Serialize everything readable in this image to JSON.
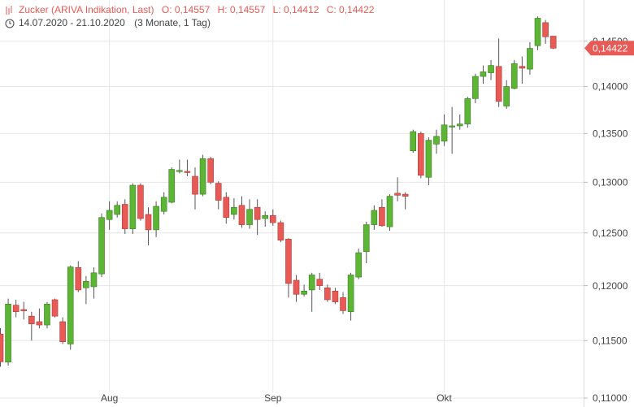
{
  "chart_data": {
    "type": "candlestick",
    "title": "Zucker (ARIVA Indikation, Last)",
    "ohlc": [
      "O: 0,14557",
      "H: 0,14557",
      "L: 0,14412",
      "C: 0,14422"
    ],
    "subtitle": "14.07.2020 - 21.10.2020",
    "period": "(3 Monate, 1 Tag)",
    "categories": [
      null,
      null,
      null,
      null,
      null,
      null,
      null,
      null,
      null,
      null,
      null,
      null,
      null,
      null,
      "Aug",
      null,
      null,
      null,
      null,
      null,
      null,
      null,
      null,
      null,
      null,
      null,
      null,
      null,
      null,
      null,
      null,
      null,
      null,
      null,
      null,
      "Sep",
      null,
      null,
      null,
      null,
      null,
      null,
      null,
      null,
      null,
      null,
      null,
      null,
      null,
      null,
      null,
      null,
      null,
      null,
      null,
      null,
      null,
      "Okt",
      null,
      null,
      null,
      null,
      null,
      null,
      null,
      null,
      null,
      null,
      null,
      null,
      null,
      null
    ],
    "open": [
      0.11559,
      0.1131,
      0.1182,
      0.1178,
      0.1172,
      0.1167,
      0.1164,
      0.1187,
      0.1167,
      0.1147,
      0.1217,
      0.1198,
      0.1199,
      0.1211,
      0.1263,
      0.1268,
      0.1278,
      0.1254,
      0.1297,
      0.1268,
      0.1253,
      0.1271,
      0.128,
      0.1311,
      0.1311,
      0.1306,
      0.1288,
      0.1324,
      0.1299,
      0.1285,
      0.1268,
      0.1277,
      0.1258,
      0.1275,
      0.1264,
      0.1267,
      0.126,
      0.1244,
      0.1205,
      0.1192,
      0.1196,
      0.1206,
      0.1198,
      0.1195,
      0.1189,
      0.1176,
      0.1208,
      0.1232,
      0.1258,
      0.1275,
      0.1256,
      0.1289,
      0.1288,
      0.1332,
      0.135,
      0.1305,
      0.1339,
      0.1342,
      0.1357,
      0.1358,
      0.136,
      0.1387,
      0.1411,
      0.1415,
      0.1422,
      0.1379,
      0.1398,
      0.1422,
      0.1419,
      0.1445,
      0.1471,
      0.14557
    ],
    "high": [
      0.1161,
      0.1188,
      0.1187,
      0.1185,
      0.1176,
      0.1179,
      0.1185,
      0.1188,
      0.1171,
      0.1219,
      0.1223,
      0.1209,
      0.1217,
      0.1269,
      0.1281,
      0.1281,
      0.1283,
      0.1299,
      0.1299,
      0.1275,
      0.1281,
      0.129,
      0.1315,
      0.1323,
      0.1323,
      0.1315,
      0.1328,
      0.1326,
      0.1301,
      0.129,
      0.1284,
      0.1286,
      0.1283,
      0.1283,
      0.1271,
      0.1273,
      0.1262,
      0.1245,
      0.121,
      0.1201,
      0.1212,
      0.1212,
      0.1201,
      0.1198,
      0.1194,
      0.1212,
      0.1235,
      0.1261,
      0.1277,
      0.1283,
      0.1288,
      0.1305,
      0.129,
      0.1354,
      0.1352,
      0.1346,
      0.1354,
      0.137,
      0.1378,
      0.137,
      0.1389,
      0.1414,
      0.1423,
      0.1429,
      0.1453,
      0.1407,
      0.1429,
      0.1433,
      0.1449,
      0.1478,
      0.1474,
      0.14557
    ],
    "low": [
      0.1127,
      0.1128,
      0.1171,
      0.1169,
      0.115,
      0.1161,
      0.1161,
      0.1171,
      0.1147,
      0.1142,
      0.1194,
      0.1183,
      0.1188,
      0.1208,
      0.1253,
      0.1265,
      0.1249,
      0.1249,
      0.1262,
      0.1238,
      0.1246,
      0.1268,
      0.1279,
      0.1309,
      0.1306,
      0.1273,
      0.1286,
      0.1298,
      0.1273,
      0.1259,
      0.1263,
      0.1255,
      0.1254,
      0.1248,
      0.1256,
      0.1257,
      0.1241,
      0.1189,
      0.1185,
      0.119,
      0.1176,
      0.1196,
      0.1185,
      0.1183,
      0.1174,
      0.1168,
      0.1206,
      0.1221,
      0.1253,
      0.1256,
      0.1252,
      0.1281,
      0.1273,
      0.133,
      0.1304,
      0.1297,
      0.1329,
      0.1337,
      0.1329,
      0.1354,
      0.1356,
      0.1382,
      0.1403,
      0.1407,
      0.1378,
      0.1376,
      0.1397,
      0.1403,
      0.1413,
      0.144,
      0.1447,
      0.14412
    ],
    "close": [
      0.11313,
      0.1183,
      0.1176,
      0.1177,
      0.1165,
      0.1164,
      0.1183,
      0.1172,
      0.1149,
      0.12175,
      0.1196,
      0.1204,
      0.1212,
      0.1265,
      0.1272,
      0.1277,
      0.1254,
      0.1297,
      0.1264,
      0.1253,
      0.1276,
      0.1285,
      0.1313,
      0.1312,
      0.131,
      0.1288,
      0.1324,
      0.13,
      0.1282,
      0.1265,
      0.1275,
      0.1258,
      0.1273,
      0.1263,
      0.1267,
      0.126,
      0.1243,
      0.1202,
      0.1192,
      0.1195,
      0.121,
      0.12,
      0.1187,
      0.1185,
      0.1177,
      0.121,
      0.1231,
      0.1258,
      0.1272,
      0.1257,
      0.1286,
      0.1287,
      0.1286,
      0.1352,
      0.1307,
      0.1343,
      0.1347,
      0.1359,
      0.1358,
      0.136,
      0.1387,
      0.1411,
      0.1416,
      0.1423,
      0.1384,
      0.14,
      0.1425,
      0.142,
      0.1442,
      0.1476,
      0.1455,
      0.14422
    ],
    "up_color": "#5cb534",
    "down_color": "#e85a55",
    "log_scale": true,
    "ylim": [
      0.10924,
      0.1497
    ],
    "yticks": [
      {
        "value": 0.11,
        "label": "0,11000"
      },
      {
        "value": 0.115,
        "label": "0,11500"
      },
      {
        "value": 0.12,
        "label": "0,12000"
      },
      {
        "value": 0.125,
        "label": "0,12500"
      },
      {
        "value": 0.13,
        "label": "0,13000"
      },
      {
        "value": 0.135,
        "label": "0,13500"
      },
      {
        "value": 0.14,
        "label": "0,14000"
      },
      {
        "value": 0.145,
        "label": "0,14500"
      }
    ],
    "grid": true,
    "last": {
      "value": 0.14422,
      "label": "0,14422"
    }
  }
}
